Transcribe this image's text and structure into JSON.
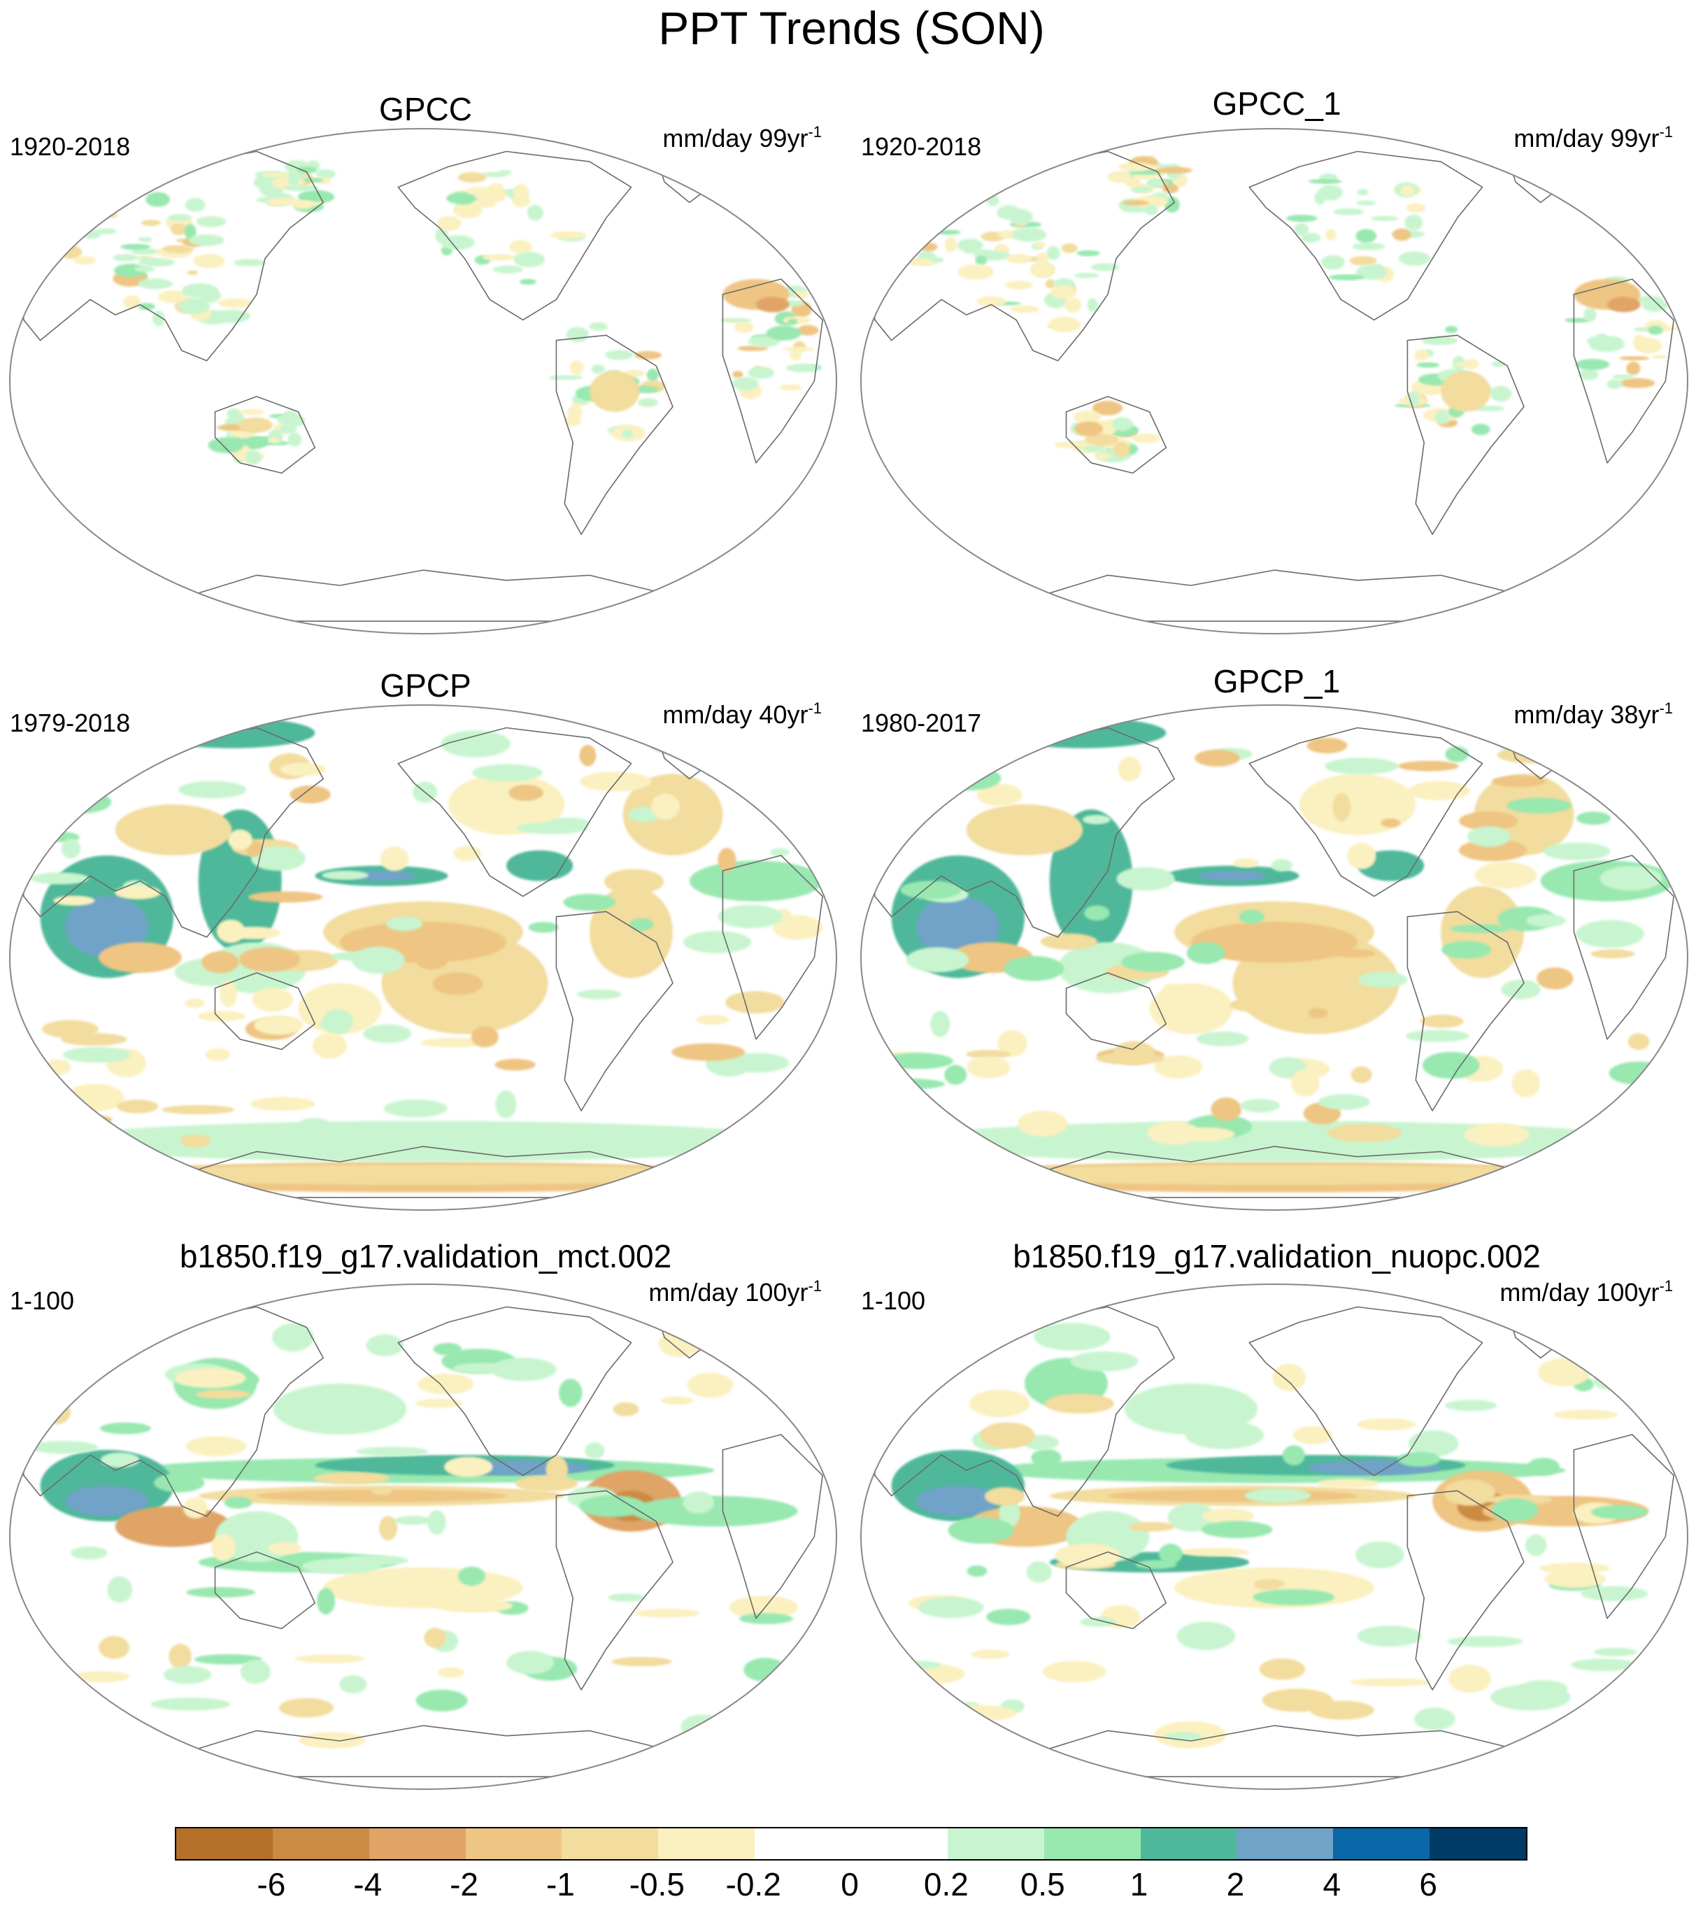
{
  "title": "PPT Trends (SON)",
  "panels": [
    {
      "name": "GPCC",
      "period": "1920-2018",
      "units": "mm/day 99yr",
      "exp": "-1",
      "pattern": "obs_land"
    },
    {
      "name": "GPCC_1",
      "period": "1920-2018",
      "units": "mm/day 99yr",
      "exp": "-1",
      "pattern": "obs_land"
    },
    {
      "name": "GPCP",
      "period": "1979-2018",
      "units": "mm/day 40yr",
      "exp": "-1",
      "pattern": "obs_global"
    },
    {
      "name": "GPCP_1",
      "period": "1980-2017",
      "units": "mm/day 38yr",
      "exp": "-1",
      "pattern": "obs_global"
    },
    {
      "name": "b1850.f19_g17.validation_mct.002",
      "period": "1-100",
      "units": "mm/day 100yr",
      "exp": "-1",
      "pattern": "model"
    },
    {
      "name": "b1850.f19_g17.validation_nuopc.002",
      "period": "1-100",
      "units": "mm/day 100yr",
      "exp": "-1",
      "pattern": "model2"
    }
  ],
  "colorbar": {
    "labels": [
      "-6",
      "-4",
      "-2",
      "-1",
      "-0.5",
      "-0.2",
      "0",
      "0.2",
      "0.5",
      "1",
      "2",
      "4",
      "6"
    ],
    "colors": [
      "#b5702a",
      "#cc8b45",
      "#dfa466",
      "#eec582",
      "#f2dc9e",
      "#fbf0c0",
      "#ffffff",
      "#ffffff",
      "#c8f5cf",
      "#98e8b0",
      "#4fb89a",
      "#6fa3c7",
      "#0a67a8",
      "#003a66"
    ]
  },
  "colors": {
    "map_outline": "#888888",
    "coast": "#6b6b6b"
  }
}
